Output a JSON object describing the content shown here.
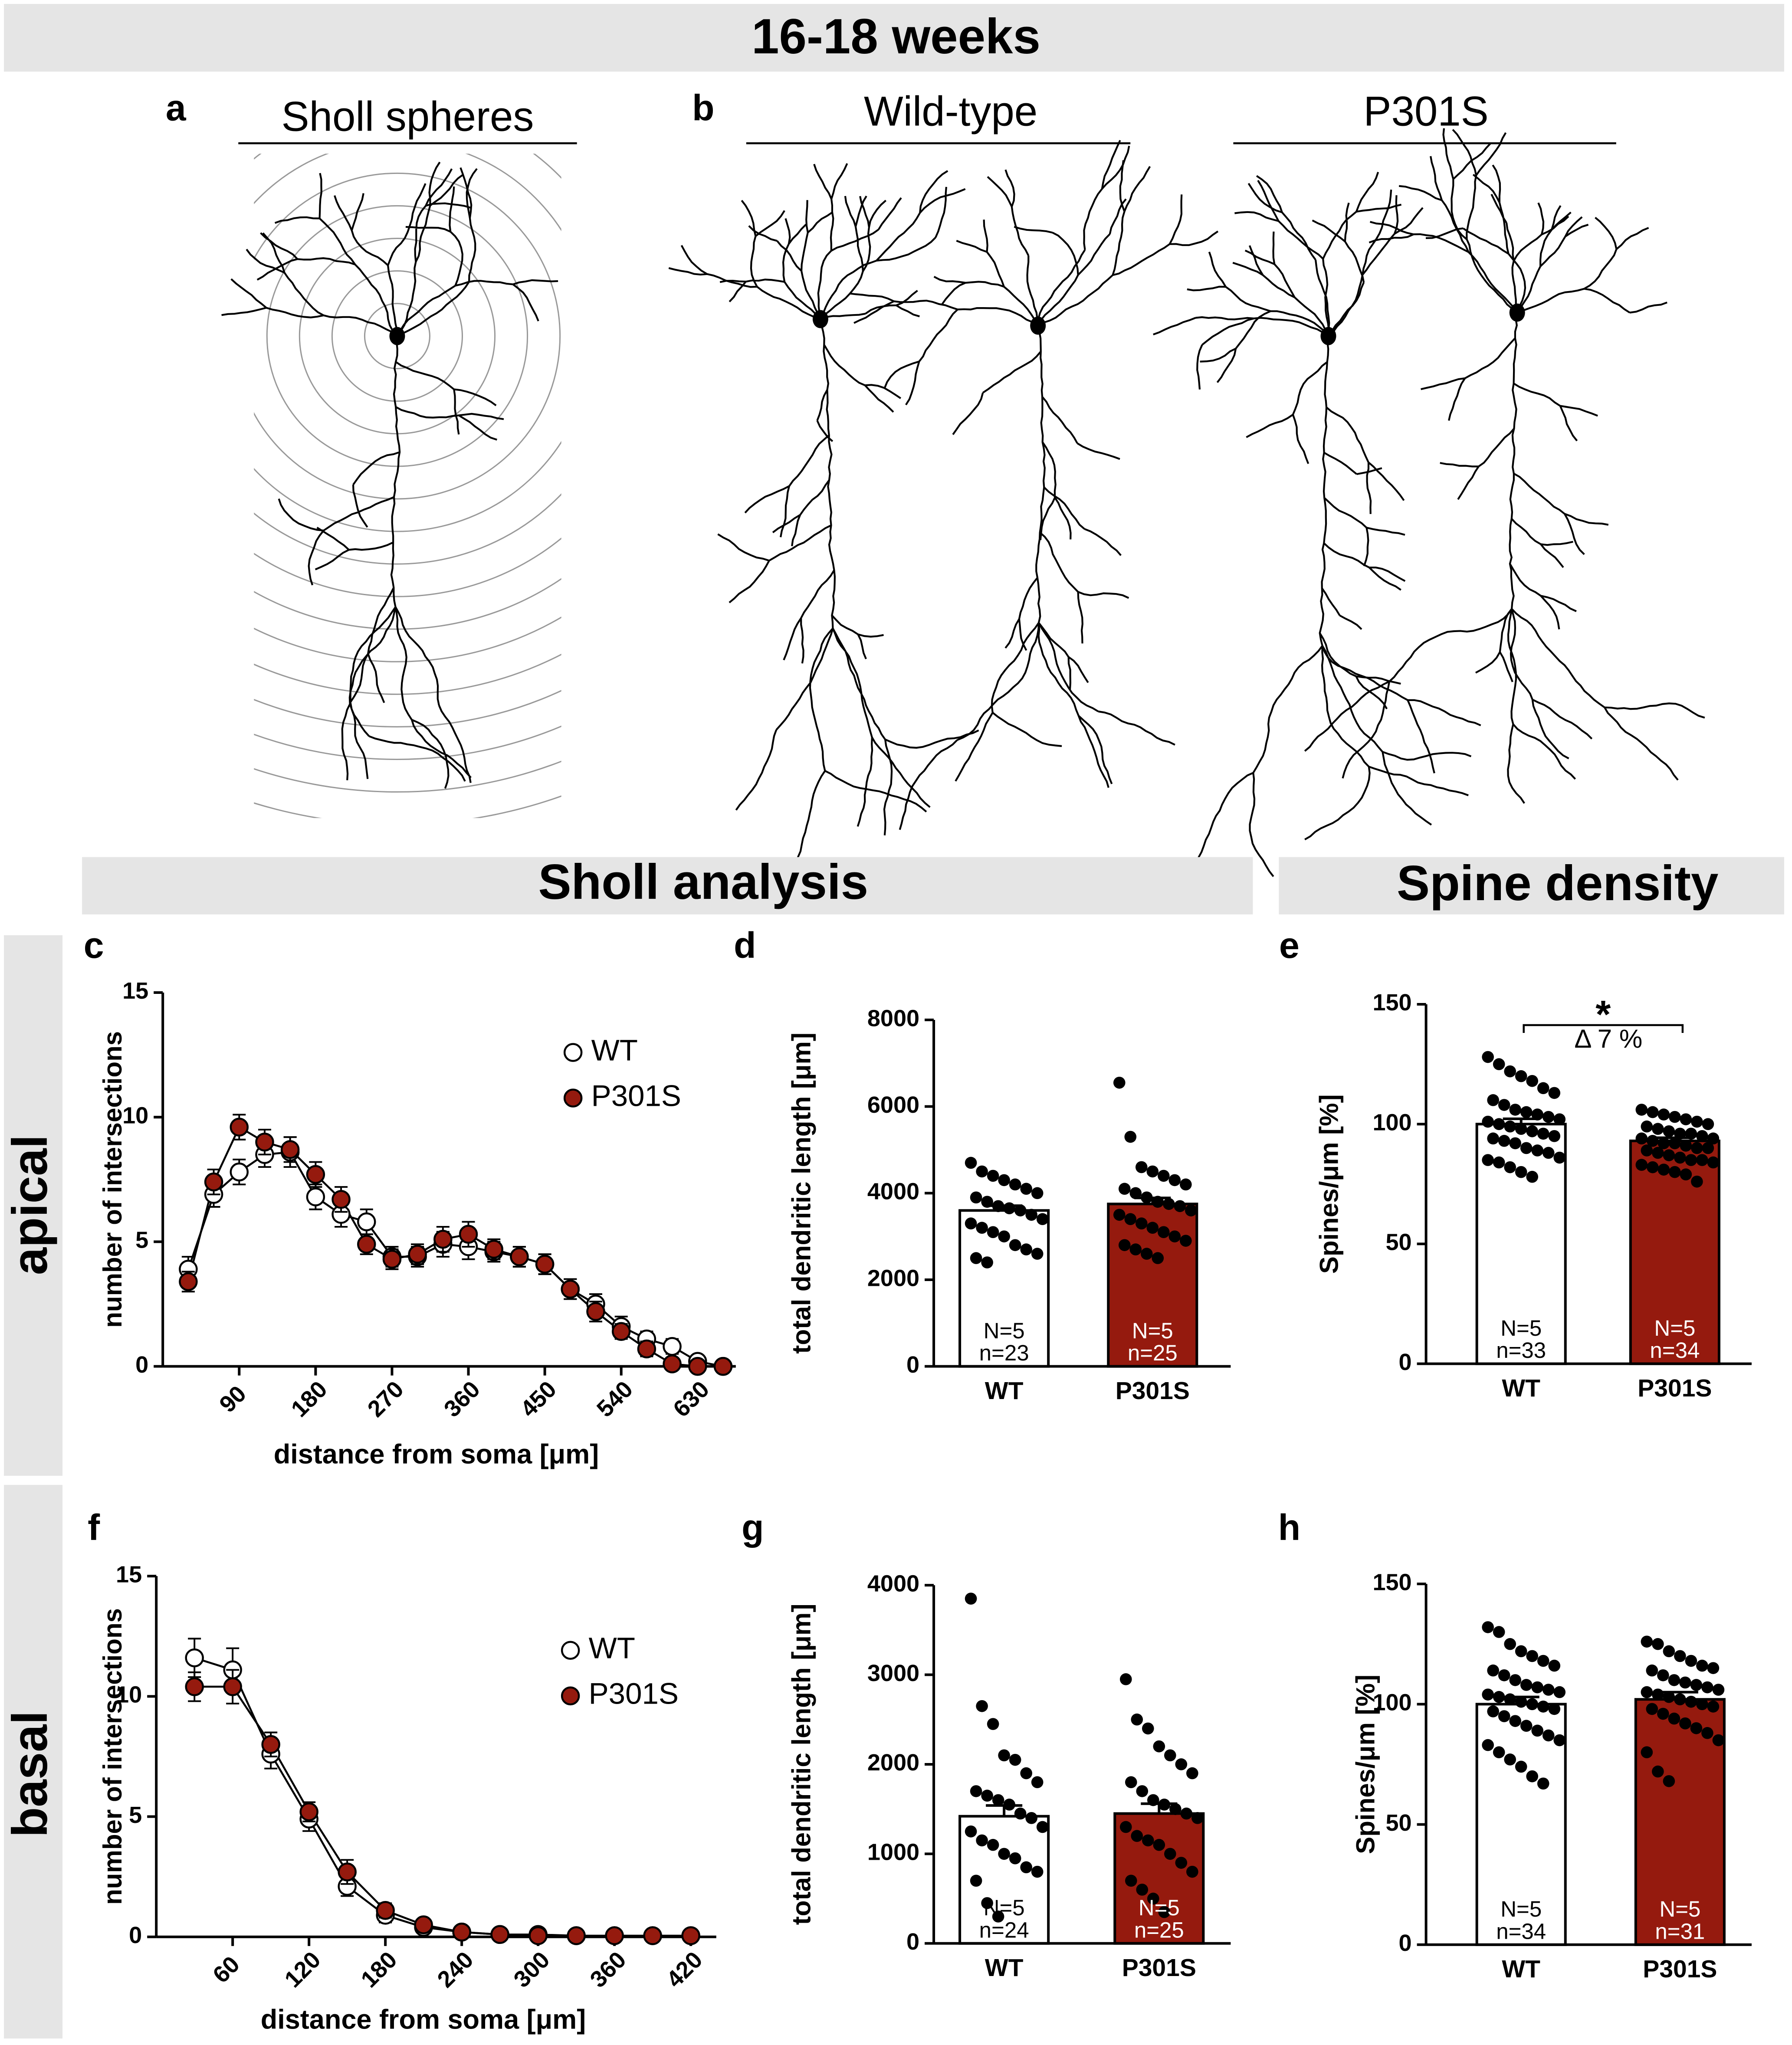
{
  "header": "16-18 weeks",
  "panel_a": {
    "letter": "a",
    "title": "Sholl spheres"
  },
  "panel_b": {
    "letter": "b",
    "groups": [
      "Wild-type",
      "P301S"
    ]
  },
  "sections": [
    "Sholl analysis",
    "Spine density"
  ],
  "rows": [
    "apical",
    "basal"
  ],
  "chart_data": [
    {
      "type": "line",
      "letter": "c",
      "xlabel": "distance from soma [μm]",
      "ylabel": "number of intersections",
      "x": [
        30,
        60,
        90,
        120,
        150,
        180,
        210,
        240,
        270,
        300,
        330,
        360,
        390,
        420,
        450,
        480,
        510,
        540,
        570,
        600,
        630,
        660
      ],
      "xlim": [
        0,
        675
      ],
      "xticks": [
        90,
        180,
        270,
        360,
        450,
        540,
        630
      ],
      "ylim": [
        0,
        15
      ],
      "yticks": [
        0,
        5,
        10,
        15
      ],
      "series": [
        {
          "name": "WT",
          "color": "#ffffff",
          "values": [
            3.9,
            6.9,
            7.8,
            8.5,
            8.6,
            6.8,
            6.1,
            5.8,
            4.4,
            4.4,
            4.9,
            4.8,
            4.6,
            4.4,
            4.1,
            3.1,
            2.5,
            1.6,
            1.1,
            0.8,
            0.2,
            0.0
          ],
          "errors": [
            0.5,
            0.5,
            0.5,
            0.5,
            0.6,
            0.5,
            0.5,
            0.5,
            0.4,
            0.4,
            0.5,
            0.5,
            0.4,
            0.4,
            0.4,
            0.4,
            0.4,
            0.4,
            0.3,
            0.3,
            0.2,
            0.1
          ]
        },
        {
          "name": "P301S",
          "color": "#951a0e",
          "values": [
            3.4,
            7.4,
            9.6,
            9.0,
            8.7,
            7.7,
            6.7,
            4.9,
            4.3,
            4.5,
            5.1,
            5.3,
            4.7,
            4.4,
            4.1,
            3.1,
            2.2,
            1.4,
            0.7,
            0.1,
            0.0,
            0.0
          ],
          "errors": [
            0.4,
            0.5,
            0.5,
            0.5,
            0.5,
            0.5,
            0.5,
            0.4,
            0.4,
            0.4,
            0.5,
            0.5,
            0.4,
            0.4,
            0.4,
            0.4,
            0.4,
            0.3,
            0.3,
            0.1,
            0.1,
            0.1
          ]
        }
      ],
      "legend": "upper right"
    },
    {
      "type": "bar",
      "letter": "d",
      "ylabel": "total dendritic length [μm]",
      "categories": [
        "WT",
        "P301S"
      ],
      "values": [
        3600,
        3750
      ],
      "errors": [
        110,
        140
      ],
      "colors": [
        "#ffffff",
        "#951a0e"
      ],
      "ylim": [
        0,
        8000
      ],
      "yticks": [
        0,
        2000,
        4000,
        6000,
        8000
      ],
      "bar_labels": [
        [
          "N=5",
          "n=23"
        ],
        [
          "N=5",
          "n=25"
        ]
      ],
      "points": [
        [
          4700,
          4500,
          4400,
          4300,
          4200,
          4100,
          4000,
          3900,
          3800,
          3700,
          3650,
          3600,
          3500,
          3400,
          3300,
          3200,
          3100,
          3000,
          2800,
          2700,
          2600,
          2500,
          2400
        ],
        [
          6550,
          5300,
          4600,
          4500,
          4400,
          4300,
          4200,
          4100,
          4000,
          3900,
          3800,
          3750,
          3700,
          3600,
          3500,
          3400,
          3300,
          3200,
          3100,
          3000,
          2900,
          2800,
          2700,
          2600,
          2500
        ]
      ]
    },
    {
      "type": "bar",
      "letter": "e",
      "ylabel": "Spines/μm [%]",
      "categories": [
        "WT",
        "P301S"
      ],
      "values": [
        100,
        93
      ],
      "errors": [
        2.2,
        1.3
      ],
      "colors": [
        "#ffffff",
        "#951a0e"
      ],
      "ylim": [
        0,
        150
      ],
      "yticks": [
        0,
        50,
        100,
        150
      ],
      "bar_labels": [
        [
          "N=5",
          "n=33"
        ],
        [
          "N=5",
          "n=34"
        ]
      ],
      "annotations": [
        "*",
        "Δ 7 %"
      ],
      "points": [
        [
          128,
          125,
          122,
          120,
          118,
          115,
          113,
          110,
          108,
          106,
          105,
          104,
          103,
          102,
          101,
          100,
          99,
          98,
          97,
          96,
          95,
          94,
          93,
          92,
          90,
          89,
          88,
          86,
          85,
          84,
          82,
          80,
          78
        ],
        [
          106,
          105,
          104,
          103,
          102,
          101,
          100,
          99,
          98,
          97,
          96,
          96,
          95,
          94,
          94,
          93,
          92,
          92,
          91,
          90,
          90,
          89,
          88,
          87,
          86,
          85,
          85,
          84,
          83,
          82,
          81,
          80,
          79,
          76
        ]
      ]
    },
    {
      "type": "line",
      "letter": "f",
      "xlabel": "distance from soma [μm]",
      "ylabel": "number of intersections",
      "x": [
        30,
        60,
        90,
        120,
        150,
        180,
        210,
        240,
        270,
        300,
        330,
        360,
        390,
        420
      ],
      "xlim": [
        0,
        440
      ],
      "xticks": [
        60,
        120,
        180,
        240,
        300,
        360,
        420
      ],
      "ylim": [
        0,
        15
      ],
      "yticks": [
        0,
        5,
        10,
        15
      ],
      "series": [
        {
          "name": "WT",
          "color": "#ffffff",
          "values": [
            11.6,
            11.1,
            7.6,
            4.9,
            2.1,
            0.9,
            0.4,
            0.2,
            0.1,
            0.1,
            0.05,
            0.05,
            0.05,
            0.05
          ],
          "errors": [
            0.8,
            0.9,
            0.6,
            0.5,
            0.4,
            0.3,
            0.2,
            0.1,
            0.1,
            0.1,
            0.05,
            0.05,
            0.05,
            0.05
          ]
        },
        {
          "name": "P301S",
          "color": "#951a0e",
          "values": [
            10.4,
            10.4,
            8.0,
            5.2,
            2.7,
            1.1,
            0.5,
            0.2,
            0.1,
            0.05,
            0.05,
            0.05,
            0.05,
            0.05
          ],
          "errors": [
            0.6,
            0.7,
            0.5,
            0.4,
            0.5,
            0.3,
            0.2,
            0.1,
            0.1,
            0.05,
            0.05,
            0.05,
            0.05,
            0.05
          ]
        }
      ],
      "legend": "upper right"
    },
    {
      "type": "bar",
      "letter": "g",
      "ylabel": "total dendritic length [μm]",
      "categories": [
        "WT",
        "P301S"
      ],
      "values": [
        1420,
        1450
      ],
      "errors": [
        120,
        110
      ],
      "colors": [
        "#ffffff",
        "#951a0e"
      ],
      "ylim": [
        0,
        4000
      ],
      "yticks": [
        0,
        1000,
        2000,
        3000,
        4000
      ],
      "bar_labels": [
        [
          "N=5",
          "n=24"
        ],
        [
          "N=5",
          "n=25"
        ]
      ],
      "points": [
        [
          3850,
          2650,
          2450,
          2100,
          2050,
          1900,
          1800,
          1700,
          1650,
          1600,
          1550,
          1450,
          1400,
          1300,
          1250,
          1150,
          1100,
          1000,
          950,
          850,
          800,
          700,
          450,
          300
        ],
        [
          2950,
          2500,
          2400,
          2200,
          2100,
          2000,
          1900,
          1800,
          1700,
          1600,
          1550,
          1500,
          1450,
          1400,
          1300,
          1200,
          1150,
          1100,
          1000,
          900,
          800,
          700,
          600,
          500,
          350
        ]
      ]
    },
    {
      "type": "bar",
      "letter": "h",
      "ylabel": "Spines/μm [%]",
      "categories": [
        "WT",
        "P301S"
      ],
      "values": [
        100,
        102
      ],
      "errors": [
        3,
        3
      ],
      "colors": [
        "#ffffff",
        "#951a0e"
      ],
      "ylim": [
        0,
        150
      ],
      "yticks": [
        0,
        50,
        100,
        150
      ],
      "bar_labels": [
        [
          "N=5",
          "n=34"
        ],
        [
          "N=5",
          "n=31"
        ]
      ],
      "points": [
        [
          132,
          130,
          125,
          122,
          120,
          118,
          116,
          114,
          112,
          110,
          108,
          107,
          106,
          105,
          104,
          103,
          102,
          101,
          100,
          99,
          98,
          97,
          95,
          93,
          91,
          89,
          87,
          85,
          83,
          80,
          77,
          74,
          70,
          67
        ],
        [
          126,
          125,
          122,
          120,
          118,
          116,
          115,
          114,
          112,
          110,
          109,
          108,
          107,
          106,
          105,
          104,
          103,
          102,
          101,
          100,
          99,
          98,
          96,
          94,
          92,
          90,
          88,
          85,
          80,
          72,
          68
        ]
      ]
    }
  ]
}
